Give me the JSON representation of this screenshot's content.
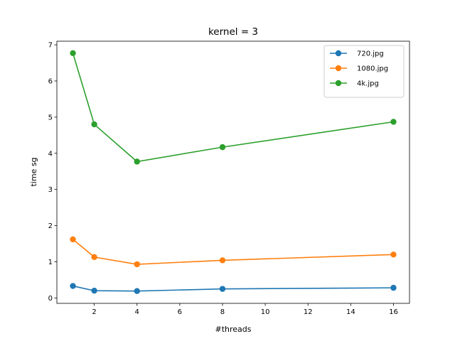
{
  "chart_data": {
    "type": "line",
    "title": "kernel = 3",
    "xlabel": "#threads",
    "ylabel": "time sg",
    "x": [
      1,
      2,
      4,
      8,
      16
    ],
    "xlim": [
      0.25,
      16.75
    ],
    "ylim": [
      -0.15,
      7.1
    ],
    "xticks": [
      2,
      4,
      6,
      8,
      10,
      12,
      14,
      16
    ],
    "yticks": [
      0,
      1,
      2,
      3,
      4,
      5,
      6,
      7
    ],
    "grid": false,
    "legend_position": "top-right",
    "series": [
      {
        "name": "720.jpg",
        "color": "#1f77b4",
        "values": [
          0.33,
          0.2,
          0.19,
          0.25,
          0.28
        ]
      },
      {
        "name": "1080.jpg",
        "color": "#ff7f0e",
        "values": [
          1.62,
          1.13,
          0.93,
          1.04,
          1.2
        ]
      },
      {
        "name": "4k.jpg",
        "color": "#2ca02c",
        "values": [
          6.77,
          4.8,
          3.77,
          4.17,
          4.87
        ]
      }
    ]
  }
}
